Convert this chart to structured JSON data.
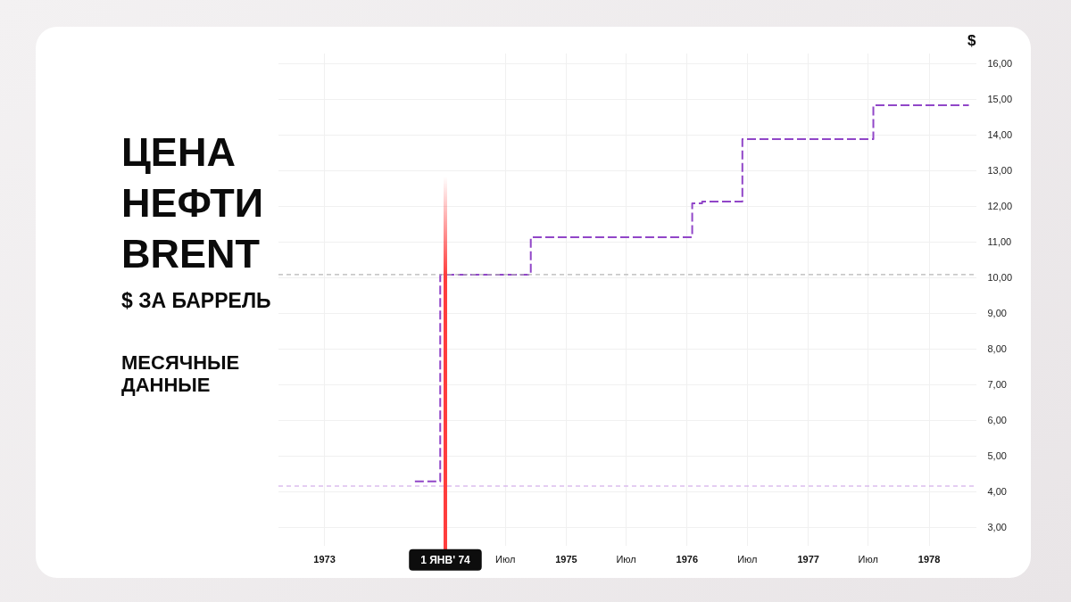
{
  "chart_data": {
    "type": "step",
    "title": "ЦЕНА НЕФТИ BRENT",
    "subtitle": "$ ЗА БАРРЕЛЬ",
    "annotations": [
      "МЕСЯЧНЫЕ ДАННЫЕ"
    ],
    "ylabel": "$",
    "x": [
      "1973-10",
      "1973-11",
      "1973-12",
      "1974-01",
      "1974-02",
      "1974-03",
      "1974-04",
      "1974-05",
      "1974-06",
      "1974-07",
      "1974-08",
      "1974-09",
      "1974-10",
      "1974-11",
      "1974-12",
      "1975-01",
      "1975-02",
      "1975-03",
      "1975-04",
      "1975-05",
      "1975-06",
      "1975-07",
      "1975-08",
      "1975-09",
      "1975-10",
      "1975-11",
      "1975-12",
      "1976-01",
      "1976-02",
      "1976-03",
      "1976-04",
      "1976-05",
      "1976-06",
      "1976-07",
      "1976-08",
      "1976-09",
      "1976-10",
      "1976-11",
      "1976-12",
      "1977-01",
      "1977-02",
      "1977-03",
      "1977-04",
      "1977-05",
      "1977-06",
      "1977-07",
      "1977-08",
      "1977-09",
      "1977-10",
      "1977-11",
      "1977-12",
      "1978-01",
      "1978-02",
      "1978-03",
      "1978-04",
      "1978-05"
    ],
    "values": [
      4.3,
      4.3,
      4.3,
      10.1,
      10.1,
      10.1,
      10.1,
      10.1,
      10.1,
      10.1,
      10.1,
      10.1,
      11.15,
      11.15,
      11.15,
      11.15,
      11.15,
      11.15,
      11.15,
      11.15,
      11.15,
      11.15,
      11.15,
      11.15,
      11.15,
      11.15,
      11.15,
      11.15,
      12.1,
      12.15,
      12.15,
      12.15,
      12.15,
      13.9,
      13.9,
      13.9,
      13.9,
      13.9,
      13.9,
      13.9,
      13.9,
      13.9,
      13.9,
      13.9,
      13.9,
      13.9,
      14.85,
      14.85,
      14.85,
      14.85,
      14.85,
      14.85,
      14.85,
      14.85,
      14.85,
      14.85
    ],
    "color": "#9146c8",
    "line_style": "dashed",
    "xlim": [
      "1972-08-15",
      "1978-05-25"
    ],
    "xticks": [
      {
        "value": "1973",
        "label": "1973"
      },
      {
        "value": "1974-07",
        "label": "Июл"
      },
      {
        "value": "1975",
        "label": "1975"
      },
      {
        "value": "1975-07",
        "label": "Июл"
      },
      {
        "value": "1976",
        "label": "1976"
      },
      {
        "value": "1976-07",
        "label": "Июл"
      },
      {
        "value": "1977",
        "label": "1977"
      },
      {
        "value": "1977-07",
        "label": "Июл"
      },
      {
        "value": "1978",
        "label": "1978"
      }
    ],
    "ylim": [
      2.5,
      16.3
    ],
    "yticks": [
      {
        "value": 3,
        "label": "3,00"
      },
      {
        "value": 4,
        "label": "4,00"
      },
      {
        "value": 5,
        "label": "5,00"
      },
      {
        "value": 6,
        "label": "6,00"
      },
      {
        "value": 7,
        "label": "7,00"
      },
      {
        "value": 8,
        "label": "8,00"
      },
      {
        "value": 9,
        "label": "9,00"
      },
      {
        "value": 10,
        "label": "10,00"
      },
      {
        "value": 11,
        "label": "11,00"
      },
      {
        "value": 12,
        "label": "12,00"
      },
      {
        "value": 13,
        "label": "13,00"
      },
      {
        "value": 14,
        "label": "14,00"
      },
      {
        "value": 15,
        "label": "15,00"
      },
      {
        "value": 16,
        "label": "16,00"
      }
    ],
    "grid": true,
    "ref_lines": [
      {
        "axis": "y",
        "value": 4.17,
        "color": "#c99be6",
        "line_style": "dashed"
      },
      {
        "axis": "y",
        "value": 10.1,
        "color": "#b5b5b5",
        "line_style": "dashed"
      },
      {
        "axis": "x",
        "value": "1974-01",
        "label": "1 ЯНВ' 74",
        "color": "#ff3d3d",
        "line_style": "solid"
      }
    ]
  }
}
